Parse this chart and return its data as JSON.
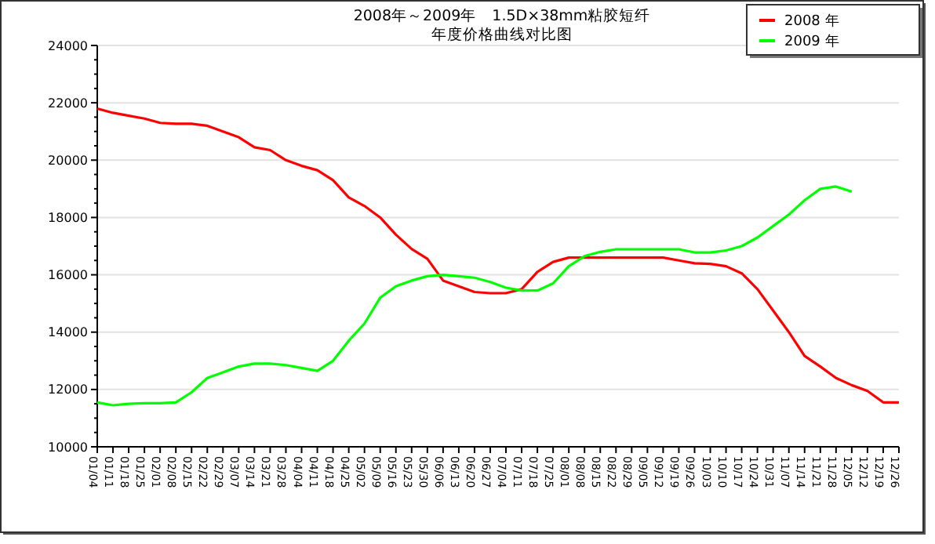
{
  "chart_data": {
    "type": "line",
    "title": "2008年～2009年　1.5D×38mm粘胶短纤",
    "subtitle": "年度价格曲线对比图",
    "categories": [
      "01/04",
      "01/11",
      "01/18",
      "01/25",
      "02/01",
      "02/08",
      "02/15",
      "02/22",
      "02/29",
      "03/07",
      "03/14",
      "03/21",
      "03/28",
      "04/04",
      "04/11",
      "04/18",
      "04/25",
      "05/02",
      "05/09",
      "05/16",
      "05/23",
      "05/30",
      "06/06",
      "06/13",
      "06/20",
      "06/27",
      "07/04",
      "07/11",
      "07/18",
      "07/25",
      "08/01",
      "08/08",
      "08/15",
      "08/22",
      "08/29",
      "09/05",
      "09/12",
      "09/19",
      "09/26",
      "10/03",
      "10/10",
      "10/17",
      "10/24",
      "10/31",
      "11/07",
      "11/14",
      "11/21",
      "11/28",
      "12/05",
      "12/12",
      "12/19",
      "12/26"
    ],
    "series": [
      {
        "name": "2008 年",
        "color": "#ff0000",
        "values": [
          21800,
          21650,
          21550,
          21450,
          21300,
          21270,
          21270,
          21200,
          21000,
          20800,
          20450,
          20350,
          20000,
          19800,
          19650,
          19300,
          18700,
          18400,
          18000,
          17400,
          16900,
          16560,
          15800,
          15600,
          15400,
          15360,
          15360,
          15500,
          16100,
          16450,
          16600,
          16600,
          16600,
          16600,
          16600,
          16600,
          16600,
          16500,
          16400,
          16380,
          16300,
          16050,
          15500,
          14750,
          14000,
          13170,
          12800,
          12400,
          12150,
          11950,
          11550,
          11550
        ]
      },
      {
        "name": "2009 年",
        "color": "#00ff00",
        "values": [
          11550,
          11450,
          11500,
          11520,
          11520,
          11550,
          11900,
          12400,
          12600,
          12800,
          12900,
          12900,
          12850,
          12750,
          12650,
          13000,
          13700,
          14300,
          15200,
          15600,
          15800,
          15950,
          16000,
          15950,
          15900,
          15750,
          15550,
          15450,
          15450,
          15700,
          16300,
          16650,
          16800,
          16890,
          16890,
          16890,
          16890,
          16890,
          16780,
          16780,
          16850,
          17000,
          17300,
          17700,
          18100,
          18600,
          19000,
          19080,
          18900,
          null,
          null,
          null
        ]
      }
    ],
    "ylim": [
      10000,
      24000
    ],
    "yticks": [
      10000,
      12000,
      14000,
      16000,
      18000,
      20000,
      22000,
      24000
    ],
    "grid": "y",
    "legend": "top right",
    "marker": "none",
    "line_style": "solid"
  }
}
